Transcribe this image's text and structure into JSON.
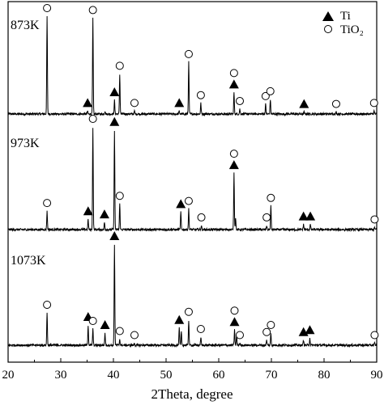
{
  "chart_data": {
    "type": "line",
    "xlabel": "2Theta, degree",
    "ylabel": "",
    "xlim": [
      20,
      90
    ],
    "x_ticks": [
      20,
      30,
      40,
      50,
      60,
      70,
      80,
      90
    ],
    "x_tick_labels": [
      "20",
      "30",
      "40",
      "50",
      "60",
      "70",
      "80",
      "90"
    ],
    "grid": false,
    "legend": {
      "position": "top-right",
      "entries": [
        {
          "marker": "filled-triangle",
          "label": "Ti"
        },
        {
          "marker": "open-circle",
          "label": "TiO₂"
        }
      ]
    },
    "series": [
      {
        "name": "873K",
        "baseline": 0,
        "peaks": [
          {
            "x": 27.4,
            "y": 100
          },
          {
            "x": 35.1,
            "y": 3
          },
          {
            "x": 36.1,
            "y": 98
          },
          {
            "x": 38.4,
            "y": 3
          },
          {
            "x": 40.2,
            "y": 14
          },
          {
            "x": 41.2,
            "y": 41
          },
          {
            "x": 44.0,
            "y": 3
          },
          {
            "x": 52.5,
            "y": 3
          },
          {
            "x": 54.3,
            "y": 53
          },
          {
            "x": 56.6,
            "y": 11
          },
          {
            "x": 62.9,
            "y": 22
          },
          {
            "x": 64.0,
            "y": 5
          },
          {
            "x": 68.9,
            "y": 10
          },
          {
            "x": 69.8,
            "y": 15
          },
          {
            "x": 76.2,
            "y": 2
          },
          {
            "x": 82.3,
            "y": 2
          },
          {
            "x": 89.5,
            "y": 3
          }
        ],
        "markers": [
          {
            "x": 27.4,
            "phase": "TiO2"
          },
          {
            "x": 36.1,
            "phase": "TiO2"
          },
          {
            "x": 35.1,
            "phase": "Ti"
          },
          {
            "x": 40.2,
            "phase": "Ti"
          },
          {
            "x": 41.2,
            "phase": "TiO2"
          },
          {
            "x": 44.0,
            "phase": "TiO2"
          },
          {
            "x": 52.5,
            "phase": "Ti"
          },
          {
            "x": 54.3,
            "phase": "TiO2"
          },
          {
            "x": 56.6,
            "phase": "TiO2"
          },
          {
            "x": 62.9,
            "phase": "Ti"
          },
          {
            "x": 62.9,
            "phase": "TiO2"
          },
          {
            "x": 64.0,
            "phase": "TiO2"
          },
          {
            "x": 68.9,
            "phase": "TiO2"
          },
          {
            "x": 69.8,
            "phase": "TiO2"
          },
          {
            "x": 76.2,
            "phase": "Ti"
          },
          {
            "x": 82.3,
            "phase": "TiO2"
          },
          {
            "x": 89.5,
            "phase": "TiO2"
          }
        ]
      },
      {
        "name": "973K",
        "baseline": 0,
        "peaks": [
          {
            "x": 27.4,
            "y": 18
          },
          {
            "x": 35.2,
            "y": 10
          },
          {
            "x": 36.1,
            "y": 100
          },
          {
            "x": 38.3,
            "y": 7
          },
          {
            "x": 40.2,
            "y": 97
          },
          {
            "x": 41.2,
            "y": 25
          },
          {
            "x": 52.8,
            "y": 17
          },
          {
            "x": 54.3,
            "y": 20
          },
          {
            "x": 56.7,
            "y": 4
          },
          {
            "x": 62.9,
            "y": 55
          },
          {
            "x": 63.2,
            "y": 12
          },
          {
            "x": 69.1,
            "y": 4
          },
          {
            "x": 69.9,
            "y": 23
          },
          {
            "x": 76.1,
            "y": 5
          },
          {
            "x": 77.4,
            "y": 5
          },
          {
            "x": 89.6,
            "y": 2
          }
        ],
        "markers": [
          {
            "x": 27.4,
            "phase": "TiO2"
          },
          {
            "x": 35.2,
            "phase": "Ti"
          },
          {
            "x": 36.1,
            "phase": "TiO2"
          },
          {
            "x": 38.3,
            "phase": "Ti"
          },
          {
            "x": 40.2,
            "phase": "Ti"
          },
          {
            "x": 41.2,
            "phase": "TiO2"
          },
          {
            "x": 52.8,
            "phase": "Ti"
          },
          {
            "x": 54.3,
            "phase": "TiO2"
          },
          {
            "x": 56.7,
            "phase": "TiO2"
          },
          {
            "x": 62.9,
            "phase": "Ti"
          },
          {
            "x": 62.9,
            "phase": "TiO2"
          },
          {
            "x": 69.1,
            "phase": "TiO2"
          },
          {
            "x": 69.9,
            "phase": "TiO2"
          },
          {
            "x": 76.1,
            "phase": "Ti"
          },
          {
            "x": 77.4,
            "phase": "Ti"
          },
          {
            "x": 89.6,
            "phase": "TiO2"
          }
        ]
      },
      {
        "name": "1073K",
        "baseline": 0,
        "peaks": [
          {
            "x": 27.4,
            "y": 32
          },
          {
            "x": 35.2,
            "y": 20
          },
          {
            "x": 36.1,
            "y": 16
          },
          {
            "x": 38.4,
            "y": 12
          },
          {
            "x": 40.2,
            "y": 100
          },
          {
            "x": 41.2,
            "y": 6
          },
          {
            "x": 44.0,
            "y": 2
          },
          {
            "x": 52.5,
            "y": 17
          },
          {
            "x": 52.9,
            "y": 13
          },
          {
            "x": 54.3,
            "y": 25
          },
          {
            "x": 56.6,
            "y": 8
          },
          {
            "x": 63.0,
            "y": 15
          },
          {
            "x": 63.4,
            "y": 10
          },
          {
            "x": 64.0,
            "y": 2
          },
          {
            "x": 69.1,
            "y": 5
          },
          {
            "x": 69.9,
            "y": 12
          },
          {
            "x": 76.1,
            "y": 5
          },
          {
            "x": 77.3,
            "y": 7
          },
          {
            "x": 89.6,
            "y": 2
          }
        ],
        "markers": [
          {
            "x": 27.4,
            "phase": "TiO2"
          },
          {
            "x": 35.2,
            "phase": "Ti"
          },
          {
            "x": 36.1,
            "phase": "TiO2"
          },
          {
            "x": 38.4,
            "phase": "Ti"
          },
          {
            "x": 40.2,
            "phase": "Ti"
          },
          {
            "x": 41.2,
            "phase": "TiO2"
          },
          {
            "x": 44.0,
            "phase": "TiO2"
          },
          {
            "x": 52.5,
            "phase": "Ti"
          },
          {
            "x": 54.3,
            "phase": "TiO2"
          },
          {
            "x": 56.6,
            "phase": "TiO2"
          },
          {
            "x": 63.0,
            "phase": "Ti"
          },
          {
            "x": 63.0,
            "phase": "TiO2"
          },
          {
            "x": 64.0,
            "phase": "TiO2"
          },
          {
            "x": 69.1,
            "phase": "TiO2"
          },
          {
            "x": 69.9,
            "phase": "TiO2"
          },
          {
            "x": 76.1,
            "phase": "Ti"
          },
          {
            "x": 77.3,
            "phase": "Ti"
          },
          {
            "x": 89.6,
            "phase": "TiO2"
          }
        ]
      }
    ]
  }
}
